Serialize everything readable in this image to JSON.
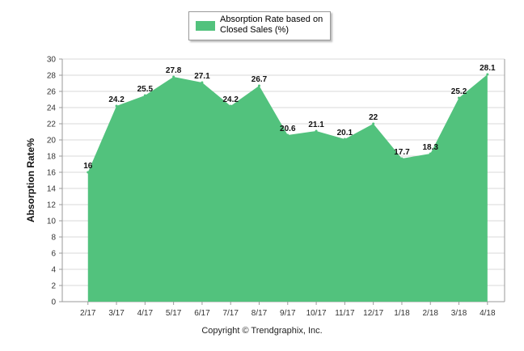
{
  "legend": {
    "label": "Absorption Rate based on Closed Sales (%)"
  },
  "footer": {
    "copyright": "Copyright © Trendgraphix, Inc."
  },
  "colors": {
    "series": "#52c27d",
    "grid": "#d9d9d9",
    "axis": "#9a9a9a"
  },
  "chart_data": {
    "type": "area",
    "categories": [
      "2/17",
      "3/17",
      "4/17",
      "5/17",
      "6/17",
      "7/17",
      "8/17",
      "9/17",
      "10/17",
      "11/17",
      "12/17",
      "1/18",
      "2/18",
      "3/18",
      "4/18"
    ],
    "series": [
      {
        "name": "Absorption Rate based on Closed Sales (%)",
        "values": [
          16,
          24.2,
          25.5,
          27.8,
          27.1,
          24.2,
          26.7,
          20.6,
          21.1,
          20.1,
          22,
          17.7,
          18.3,
          25.2,
          28.1
        ]
      }
    ],
    "data_labels": [
      "16",
      "24.2",
      "25.5",
      "27.8",
      "27.1",
      "24.2",
      "26.7",
      "20.6",
      "21.1",
      "20.1",
      "22",
      "17.7",
      "18.3",
      "25.2",
      "28.1"
    ],
    "yticks": [
      "0",
      "2",
      "4",
      "6",
      "8",
      "10",
      "12",
      "14",
      "16",
      "18",
      "20",
      "22",
      "24",
      "26",
      "28",
      "30"
    ],
    "ylabel": "Absorption Rate%",
    "xlabel": "",
    "ylim": [
      0,
      30
    ],
    "grid": true,
    "legend_position": "top-center"
  }
}
